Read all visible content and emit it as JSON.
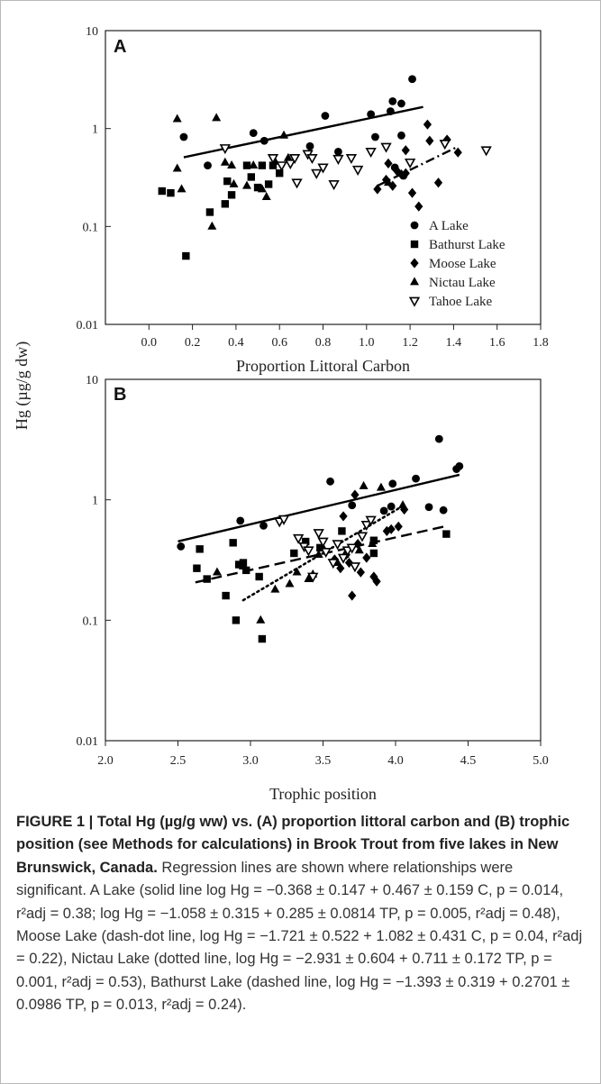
{
  "figure": {
    "y_axis_label": "Hg (µg/g dw)",
    "caption": {
      "bold": "FIGURE 1 | Total Hg (µg/g ww) vs. (A) proportion littoral carbon and (B) trophic position (see Methods for calculations) in Brook Trout from five lakes in New Brunswick, Canada.",
      "body": "Regression lines are shown where relationships were significant. A Lake (solid line log Hg = −0.368 ± 0.147 + 0.467 ± 0.159 C, p = 0.014, r²adj = 0.38; log Hg = −1.058 ± 0.315 + 0.285 ± 0.0814 TP, p = 0.005, r²adj = 0.48), Moose Lake (dash-dot line, log Hg = −1.721 ± 0.522 + 1.082 ± 0.431 C, p = 0.04, r²adj = 0.22), Nictau Lake (dotted line, log Hg = −2.931 ± 0.604 + 0.711 ± 0.172 TP, p = 0.001, r²adj = 0.53), Bathurst Lake (dashed line, log Hg = −1.393 ± 0.319 + 0.2701 ± 0.0986 TP, p = 0.013, r²adj = 0.24)."
    }
  },
  "legend": [
    {
      "name": "A Lake",
      "marker": "circle"
    },
    {
      "name": "Bathurst Lake",
      "marker": "square"
    },
    {
      "name": "Moose Lake",
      "marker": "diamond"
    },
    {
      "name": "Nictau Lake",
      "marker": "triangle"
    },
    {
      "name": "Tahoe Lake",
      "marker": "inv-triangle"
    }
  ],
  "chart_data": [
    {
      "panel": "A",
      "type": "scatter",
      "xlabel": "Proportion Littoral Carbon",
      "ylabel": "Hg (µg/g dw)",
      "xlim": [
        -0.2,
        1.8
      ],
      "ylim": [
        0.01,
        10
      ],
      "yscale": "log",
      "xticks": [
        "0.0",
        "0.2",
        "0.4",
        "0.6",
        "0.8",
        "1.0",
        "1.2",
        "1.4",
        "1.6",
        "1.8"
      ],
      "yticks": [
        "0.01",
        "0.1",
        "1",
        "10"
      ],
      "legend_position": "inside-bottom-right",
      "series": [
        {
          "name": "A Lake",
          "marker": "circle",
          "points": [
            [
              0.16,
              0.82
            ],
            [
              0.27,
              0.42
            ],
            [
              0.48,
              0.9
            ],
            [
              0.53,
              0.75
            ],
            [
              0.74,
              0.66
            ],
            [
              0.81,
              1.35
            ],
            [
              0.87,
              0.58
            ],
            [
              1.02,
              1.4
            ],
            [
              1.04,
              0.82
            ],
            [
              1.11,
              1.5
            ],
            [
              1.12,
              1.9
            ],
            [
              1.16,
              1.8
            ],
            [
              1.16,
              0.85
            ],
            [
              1.21,
              3.2
            ],
            [
              1.13,
              0.4
            ],
            [
              1.17,
              0.33
            ]
          ]
        },
        {
          "name": "Bathurst Lake",
          "marker": "square",
          "points": [
            [
              0.06,
              0.23
            ],
            [
              0.1,
              0.22
            ],
            [
              0.17,
              0.05
            ],
            [
              0.28,
              0.14
            ],
            [
              0.35,
              0.17
            ],
            [
              0.36,
              0.29
            ],
            [
              0.38,
              0.21
            ],
            [
              0.45,
              0.42
            ],
            [
              0.47,
              0.32
            ],
            [
              0.5,
              0.25
            ],
            [
              0.52,
              0.42
            ],
            [
              0.55,
              0.27
            ],
            [
              0.57,
              0.42
            ],
            [
              0.6,
              0.35
            ]
          ]
        },
        {
          "name": "Moose Lake",
          "marker": "diamond",
          "points": [
            [
              1.05,
              0.24
            ],
            [
              1.09,
              0.3
            ],
            [
              1.1,
              0.44
            ],
            [
              1.12,
              0.26
            ],
            [
              1.14,
              0.37
            ],
            [
              1.16,
              0.34
            ],
            [
              1.18,
              0.35
            ],
            [
              1.18,
              0.6
            ],
            [
              1.21,
              0.22
            ],
            [
              1.24,
              0.16
            ],
            [
              1.28,
              1.1
            ],
            [
              1.29,
              0.75
            ],
            [
              1.33,
              0.28
            ],
            [
              1.37,
              0.77
            ],
            [
              1.42,
              0.57
            ]
          ]
        },
        {
          "name": "Nictau Lake",
          "marker": "triangle",
          "points": [
            [
              0.13,
              1.25
            ],
            [
              0.13,
              0.39
            ],
            [
              0.15,
              0.24
            ],
            [
              0.29,
              0.1
            ],
            [
              0.31,
              1.28
            ],
            [
              0.35,
              0.45
            ],
            [
              0.38,
              0.42
            ],
            [
              0.39,
              0.27
            ],
            [
              0.45,
              0.26
            ],
            [
              0.48,
              0.42
            ],
            [
              0.52,
              0.24
            ],
            [
              0.54,
              0.2
            ],
            [
              0.58,
              0.46
            ],
            [
              0.62,
              0.85
            ],
            [
              0.64,
              0.5
            ],
            [
              1.1,
              0.28
            ]
          ]
        },
        {
          "name": "Tahoe Lake",
          "marker": "inv-triangle",
          "points": [
            [
              0.35,
              0.63
            ],
            [
              0.57,
              0.5
            ],
            [
              0.61,
              0.42
            ],
            [
              0.65,
              0.44
            ],
            [
              0.67,
              0.5
            ],
            [
              0.68,
              0.28
            ],
            [
              0.73,
              0.55
            ],
            [
              0.75,
              0.5
            ],
            [
              0.77,
              0.35
            ],
            [
              0.8,
              0.4
            ],
            [
              0.85,
              0.27
            ],
            [
              0.87,
              0.49
            ],
            [
              0.93,
              0.5
            ],
            [
              0.96,
              0.38
            ],
            [
              1.02,
              0.58
            ],
            [
              1.09,
              0.65
            ],
            [
              1.2,
              0.45
            ],
            [
              1.36,
              0.7
            ],
            [
              1.55,
              0.6
            ]
          ]
        }
      ],
      "regression_lines": [
        {
          "name": "A Lake",
          "style": "solid",
          "x": [
            0.16,
            1.26
          ]
        },
        {
          "name": "Moose Lake",
          "style": "dash-dot",
          "x": [
            1.05,
            1.42
          ]
        }
      ]
    },
    {
      "panel": "B",
      "type": "scatter",
      "xlabel": "Trophic position",
      "ylabel": "Hg (µg/g dw)",
      "xlim": [
        2.0,
        5.0
      ],
      "ylim": [
        0.01,
        10
      ],
      "yscale": "log",
      "xticks": [
        "2.0",
        "2.5",
        "3.0",
        "3.5",
        "4.0",
        "4.5",
        "5.0"
      ],
      "yticks": [
        "0.01",
        "0.1",
        "1",
        "10"
      ],
      "series": [
        {
          "name": "A Lake",
          "marker": "circle",
          "points": [
            [
              2.52,
              0.41
            ],
            [
              2.93,
              0.67
            ],
            [
              3.09,
              0.61
            ],
            [
              3.55,
              1.42
            ],
            [
              3.92,
              0.81
            ],
            [
              3.98,
              1.36
            ],
            [
              4.14,
              1.5
            ],
            [
              4.23,
              0.87
            ],
            [
              4.3,
              3.2
            ],
            [
              4.33,
              0.82
            ],
            [
              4.42,
              1.8
            ],
            [
              4.44,
              1.9
            ],
            [
              3.7,
              0.9
            ],
            [
              3.97,
              0.88
            ]
          ]
        },
        {
          "name": "Bathurst Lake",
          "marker": "square",
          "points": [
            [
              2.63,
              0.27
            ],
            [
              2.65,
              0.39
            ],
            [
              2.7,
              0.22
            ],
            [
              2.83,
              0.16
            ],
            [
              2.88,
              0.44
            ],
            [
              2.9,
              0.1
            ],
            [
              2.92,
              0.29
            ],
            [
              2.95,
              0.3
            ],
            [
              2.97,
              0.26
            ],
            [
              3.06,
              0.23
            ],
            [
              3.08,
              0.07
            ],
            [
              3.3,
              0.36
            ],
            [
              3.38,
              0.45
            ],
            [
              3.48,
              0.4
            ],
            [
              3.63,
              0.55
            ],
            [
              3.85,
              0.46
            ],
            [
              4.35,
              0.52
            ],
            [
              3.85,
              0.36
            ]
          ]
        },
        {
          "name": "Moose Lake",
          "marker": "diamond",
          "points": [
            [
              3.58,
              0.32
            ],
            [
              3.62,
              0.27
            ],
            [
              3.64,
              0.73
            ],
            [
              3.66,
              0.35
            ],
            [
              3.68,
              0.3
            ],
            [
              3.7,
              0.16
            ],
            [
              3.72,
              1.1
            ],
            [
              3.74,
              0.43
            ],
            [
              3.76,
              0.25
            ],
            [
              3.8,
              0.33
            ],
            [
              3.85,
              0.23
            ],
            [
              3.87,
              0.21
            ],
            [
              3.94,
              0.55
            ],
            [
              3.97,
              0.57
            ],
            [
              4.02,
              0.6
            ],
            [
              4.06,
              0.83
            ]
          ]
        },
        {
          "name": "Nictau Lake",
          "marker": "triangle",
          "points": [
            [
              2.77,
              0.25
            ],
            [
              2.95,
              0.28
            ],
            [
              3.07,
              0.1
            ],
            [
              3.17,
              0.18
            ],
            [
              3.27,
              0.2
            ],
            [
              3.32,
              0.25
            ],
            [
              3.4,
              0.22
            ],
            [
              3.43,
              0.24
            ],
            [
              3.47,
              0.35
            ],
            [
              3.5,
              0.4
            ],
            [
              3.6,
              0.3
            ],
            [
              3.65,
              0.35
            ],
            [
              3.75,
              0.38
            ],
            [
              3.78,
              1.3
            ],
            [
              3.84,
              0.43
            ],
            [
              3.9,
              1.26
            ],
            [
              4.05,
              0.9
            ]
          ]
        },
        {
          "name": "Tahoe Lake",
          "marker": "inv-triangle",
          "points": [
            [
              3.2,
              0.66
            ],
            [
              3.23,
              0.69
            ],
            [
              3.33,
              0.48
            ],
            [
              3.37,
              0.41
            ],
            [
              3.4,
              0.38
            ],
            [
              3.43,
              0.23
            ],
            [
              3.47,
              0.53
            ],
            [
              3.5,
              0.45
            ],
            [
              3.52,
              0.37
            ],
            [
              3.57,
              0.3
            ],
            [
              3.6,
              0.43
            ],
            [
              3.64,
              0.33
            ],
            [
              3.67,
              0.38
            ],
            [
              3.7,
              0.4
            ],
            [
              3.72,
              0.28
            ],
            [
              3.77,
              0.5
            ],
            [
              3.8,
              0.62
            ],
            [
              3.83,
              0.68
            ]
          ]
        }
      ],
      "regression_lines": [
        {
          "name": "A Lake",
          "style": "solid",
          "x": [
            2.5,
            4.44
          ]
        },
        {
          "name": "Bathurst Lake",
          "style": "dashed",
          "x": [
            2.62,
            4.36
          ]
        },
        {
          "name": "Nictau Lake",
          "style": "dotted",
          "x": [
            2.95,
            4.05
          ]
        }
      ]
    }
  ]
}
